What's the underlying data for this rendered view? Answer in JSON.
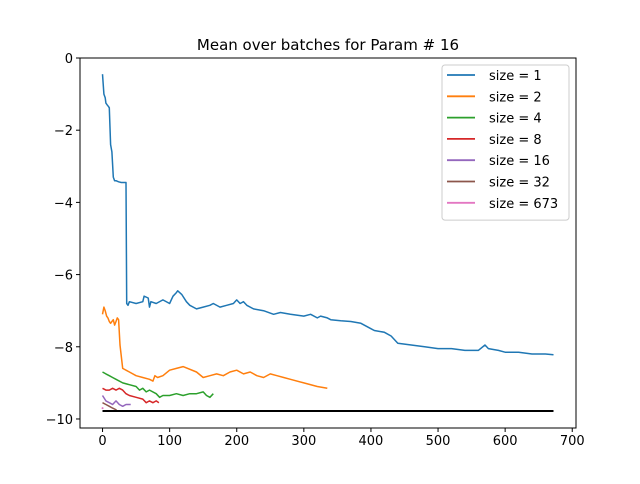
{
  "chart_data": {
    "type": "line",
    "title": "Mean over batches for Param # 16",
    "xlabel": "",
    "ylabel": "",
    "xlim": [
      -33.6,
      705.6
    ],
    "ylim": [
      -10.25,
      0
    ],
    "xticks": [
      0,
      100,
      200,
      300,
      400,
      500,
      600,
      700
    ],
    "yticks": [
      0,
      -2,
      -4,
      -6,
      -8,
      -10
    ],
    "grid": false,
    "legend_position": "top-right",
    "series": [
      {
        "name": "size = 1",
        "color": "#1f77b4",
        "x": [
          0,
          2,
          4,
          5,
          7,
          9,
          10,
          12,
          14,
          16,
          18,
          20,
          24,
          28,
          30,
          35,
          36,
          38,
          40,
          50,
          60,
          62,
          68,
          70,
          72,
          80,
          90,
          100,
          105,
          110,
          112,
          118,
          125,
          130,
          140,
          150,
          160,
          165,
          175,
          185,
          195,
          200,
          205,
          210,
          215,
          225,
          240,
          255,
          265,
          280,
          300,
          310,
          320,
          325,
          335,
          340,
          355,
          370,
          385,
          400,
          405,
          420,
          430,
          440,
          460,
          480,
          500,
          520,
          540,
          560,
          570,
          575,
          590,
          600,
          620,
          640,
          660,
          672
        ],
        "y": [
          -0.45,
          -1.0,
          -1.1,
          -1.25,
          -1.3,
          -1.35,
          -1.38,
          -2.4,
          -2.6,
          -3.3,
          -3.4,
          -3.4,
          -3.43,
          -3.45,
          -3.45,
          -3.45,
          -6.8,
          -6.85,
          -6.75,
          -6.8,
          -6.75,
          -6.6,
          -6.65,
          -6.9,
          -6.75,
          -6.8,
          -6.7,
          -6.8,
          -6.6,
          -6.5,
          -6.45,
          -6.55,
          -6.75,
          -6.85,
          -6.95,
          -6.9,
          -6.85,
          -6.8,
          -6.9,
          -6.85,
          -6.8,
          -6.7,
          -6.8,
          -6.75,
          -6.85,
          -6.95,
          -7.0,
          -7.1,
          -7.05,
          -7.1,
          -7.15,
          -7.1,
          -7.2,
          -7.15,
          -7.2,
          -7.25,
          -7.28,
          -7.3,
          -7.35,
          -7.5,
          -7.55,
          -7.6,
          -7.7,
          -7.9,
          -7.95,
          -8.0,
          -8.05,
          -8.05,
          -8.1,
          -8.1,
          -7.95,
          -8.05,
          -8.1,
          -8.15,
          -8.15,
          -8.2,
          -8.2,
          -8.22
        ]
      },
      {
        "name": "size = 2",
        "color": "#ff7f0e",
        "x": [
          0,
          2,
          4,
          6,
          8,
          10,
          12,
          14,
          16,
          18,
          20,
          22,
          24,
          26,
          30,
          40,
          50,
          60,
          70,
          75,
          78,
          82,
          90,
          100,
          110,
          120,
          140,
          150,
          160,
          170,
          180,
          190,
          200,
          210,
          220,
          230,
          240,
          250,
          260,
          270,
          280,
          300,
          320,
          335
        ],
        "y": [
          -7.1,
          -6.9,
          -7.0,
          -7.15,
          -7.2,
          -7.3,
          -7.35,
          -7.3,
          -7.25,
          -7.4,
          -7.3,
          -7.2,
          -7.25,
          -7.95,
          -8.6,
          -8.7,
          -8.8,
          -8.85,
          -8.9,
          -8.95,
          -8.8,
          -8.85,
          -8.8,
          -8.65,
          -8.6,
          -8.55,
          -8.7,
          -8.85,
          -8.8,
          -8.75,
          -8.8,
          -8.7,
          -8.65,
          -8.75,
          -8.7,
          -8.8,
          -8.85,
          -8.75,
          -8.8,
          -8.85,
          -8.9,
          -9.0,
          -9.1,
          -9.15
        ]
      },
      {
        "name": "size = 4",
        "color": "#2ca02c",
        "x": [
          0,
          5,
          10,
          15,
          20,
          30,
          40,
          50,
          55,
          60,
          65,
          70,
          80,
          85,
          90,
          100,
          110,
          120,
          130,
          140,
          150,
          155,
          160,
          165
        ],
        "y": [
          -8.7,
          -8.75,
          -8.8,
          -8.85,
          -8.9,
          -9.0,
          -9.05,
          -9.1,
          -9.2,
          -9.15,
          -9.25,
          -9.2,
          -9.3,
          -9.4,
          -9.35,
          -9.35,
          -9.3,
          -9.35,
          -9.3,
          -9.3,
          -9.25,
          -9.35,
          -9.4,
          -9.3
        ]
      },
      {
        "name": "size = 8",
        "color": "#d62728",
        "x": [
          0,
          5,
          10,
          15,
          20,
          25,
          30,
          35,
          40,
          50,
          60,
          65,
          70,
          75,
          80,
          84
        ],
        "y": [
          -9.15,
          -9.2,
          -9.2,
          -9.15,
          -9.2,
          -9.15,
          -9.2,
          -9.3,
          -9.35,
          -9.4,
          -9.45,
          -9.55,
          -9.5,
          -9.55,
          -9.5,
          -9.55
        ]
      },
      {
        "name": "size = 16",
        "color": "#9467bd",
        "x": [
          0,
          5,
          10,
          15,
          20,
          25,
          30,
          35,
          42
        ],
        "y": [
          -9.35,
          -9.5,
          -9.55,
          -9.6,
          -9.5,
          -9.6,
          -9.65,
          -9.6,
          -9.6
        ]
      },
      {
        "name": "size = 32",
        "color": "#8c564b",
        "x": [
          0,
          5,
          10,
          15,
          21
        ],
        "y": [
          -9.55,
          -9.6,
          -9.65,
          -9.7,
          -9.75
        ]
      },
      {
        "name": "size = 673",
        "color": "#e377c2",
        "x": [
          0
        ],
        "y": [
          -9.7
        ]
      },
      {
        "color": "#000000",
        "x": [
          0,
          672
        ],
        "y": [
          -9.78,
          -9.78
        ]
      }
    ]
  }
}
